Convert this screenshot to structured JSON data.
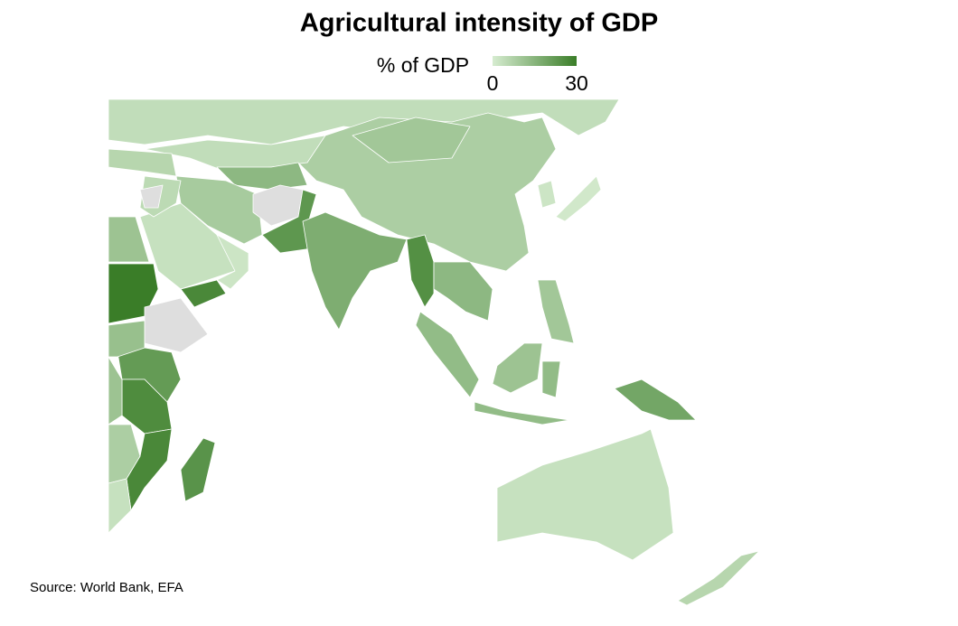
{
  "chart_data": {
    "type": "choropleth",
    "title": "Agricultural intensity of GDP",
    "legend": {
      "title": "% of GDP",
      "lim": [
        0,
        30
      ],
      "ticks": [
        0,
        30
      ],
      "colors": [
        "#d6ecd0",
        "#3a7d28"
      ]
    },
    "missing_color": "#dedede",
    "values": [
      4,
      8,
      10,
      4,
      14,
      9,
      null,
      23,
      17,
      25,
      14,
      3,
      27,
      2,
      6,
      5,
      null,
      11,
      30,
      null,
      22,
      26,
      12,
      11,
      27,
      8,
      3,
      24,
      13,
      13,
      11,
      13,
      10,
      19,
      3,
      6,
      1,
      2
    ],
    "source": "Source: World Bank, EFA"
  }
}
